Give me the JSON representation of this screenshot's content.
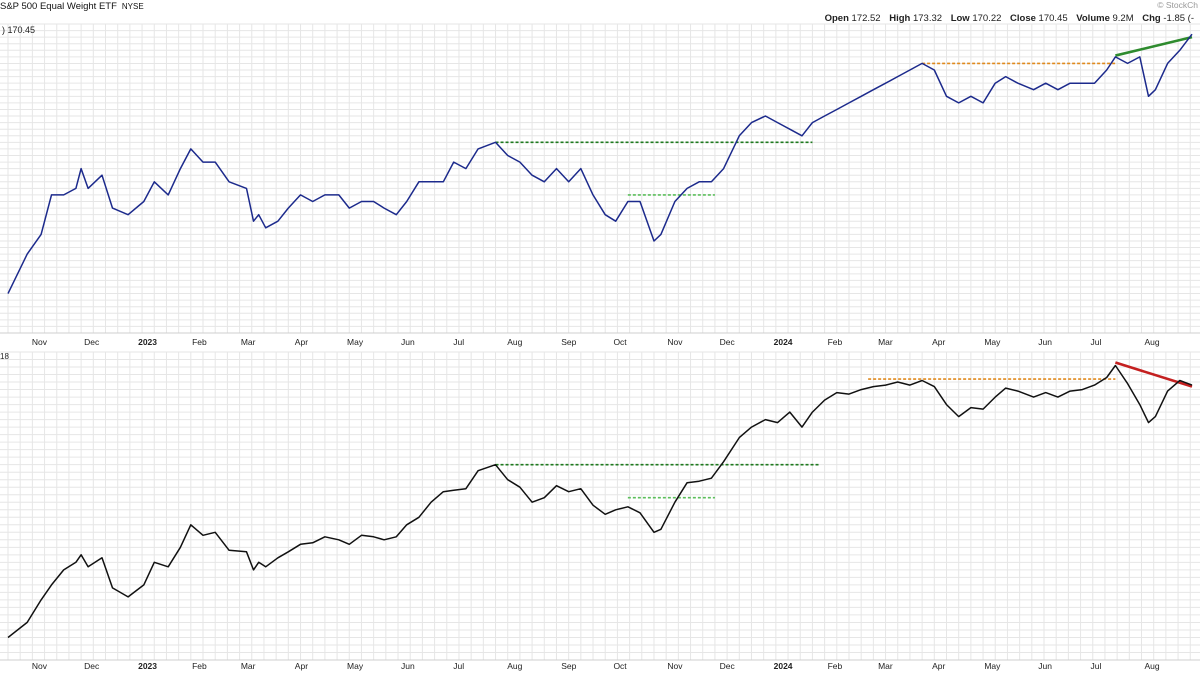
{
  "header": {
    "title": "S&P 500 Equal Weight ETF",
    "exchange": "NYSE",
    "brand": "© StockCh",
    "ohlc": [
      {
        "label": "Open",
        "value": "172.52"
      },
      {
        "label": "High",
        "value": "173.32"
      },
      {
        "label": "Low",
        "value": "170.22"
      },
      {
        "label": "Close",
        "value": "170.45"
      },
      {
        "label": "Volume",
        "value": "9.2M"
      },
      {
        "label": "Chg",
        "value": "-1.85 (-"
      }
    ],
    "current_label": ") 170.45",
    "lower_label": "18"
  },
  "chart_data": [
    {
      "type": "line",
      "title": "S&P 500 Equal Weight ETF",
      "x_tick_labels": [
        "Nov",
        "Dec",
        "2023",
        "Feb",
        "Mar",
        "Apr",
        "May",
        "Jun",
        "Jul",
        "Aug",
        "Sep",
        "Oct",
        "Nov",
        "Dec",
        "2024",
        "Feb",
        "Mar",
        "Apr",
        "May",
        "Jun",
        "Jul",
        "Aug"
      ],
      "x_range": [
        "2022-10-20",
        "2024-08-30"
      ],
      "series": [
        {
          "color": "#1c2a8c",
          "points": [
            [
              "2022-10-20",
              131
            ],
            [
              "2022-10-31",
              137
            ],
            [
              "2022-11-08",
              140
            ],
            [
              "2022-11-14",
              146
            ],
            [
              "2022-11-21",
              146
            ],
            [
              "2022-11-28",
              147
            ],
            [
              "2022-12-01",
              150
            ],
            [
              "2022-12-05",
              147
            ],
            [
              "2022-12-13",
              149
            ],
            [
              "2022-12-19",
              144
            ],
            [
              "2022-12-28",
              143
            ],
            [
              "2023-01-06",
              145
            ],
            [
              "2023-01-12",
              148
            ],
            [
              "2023-01-20",
              146
            ],
            [
              "2023-01-27",
              150
            ],
            [
              "2023-02-02",
              153
            ],
            [
              "2023-02-09",
              151
            ],
            [
              "2023-02-16",
              151
            ],
            [
              "2023-02-24",
              148
            ],
            [
              "2023-03-06",
              147
            ],
            [
              "2023-03-10",
              142
            ],
            [
              "2023-03-13",
              143
            ],
            [
              "2023-03-17",
              141
            ],
            [
              "2023-03-24",
              142
            ],
            [
              "2023-03-30",
              144
            ],
            [
              "2023-04-06",
              146
            ],
            [
              "2023-04-13",
              145
            ],
            [
              "2023-04-20",
              146
            ],
            [
              "2023-04-28",
              146
            ],
            [
              "2023-05-04",
              144
            ],
            [
              "2023-05-11",
              145
            ],
            [
              "2023-05-18",
              145
            ],
            [
              "2023-05-24",
              144
            ],
            [
              "2023-05-31",
              143
            ],
            [
              "2023-06-06",
              145
            ],
            [
              "2023-06-13",
              148
            ],
            [
              "2023-06-20",
              148
            ],
            [
              "2023-06-27",
              148
            ],
            [
              "2023-07-03",
              151
            ],
            [
              "2023-07-10",
              150
            ],
            [
              "2023-07-17",
              153
            ],
            [
              "2023-07-27",
              154
            ],
            [
              "2023-08-03",
              152
            ],
            [
              "2023-08-10",
              151
            ],
            [
              "2023-08-17",
              149
            ],
            [
              "2023-08-24",
              148
            ],
            [
              "2023-08-31",
              150
            ],
            [
              "2023-09-07",
              148
            ],
            [
              "2023-09-14",
              150
            ],
            [
              "2023-09-21",
              146
            ],
            [
              "2023-09-28",
              143
            ],
            [
              "2023-10-04",
              142
            ],
            [
              "2023-10-11",
              145
            ],
            [
              "2023-10-18",
              145
            ],
            [
              "2023-10-26",
              139
            ],
            [
              "2023-10-30",
              140
            ],
            [
              "2023-11-07",
              145
            ],
            [
              "2023-11-14",
              147
            ],
            [
              "2023-11-21",
              148
            ],
            [
              "2023-11-28",
              148
            ],
            [
              "2023-12-05",
              150
            ],
            [
              "2023-12-14",
              155
            ],
            [
              "2023-12-21",
              157
            ],
            [
              "2023-12-29",
              158
            ],
            [
              "2024-01-05",
              157
            ],
            [
              "2024-01-12",
              156
            ],
            [
              "2024-01-19",
              155
            ],
            [
              "2024-01-25",
              157
            ],
            [
              "2024-02-01",
              158
            ],
            [
              "2024-02-08",
              159
            ],
            [
              "2024-02-15",
              160
            ],
            [
              "2024-02-22",
              161
            ],
            [
              "2024-02-29",
              162
            ],
            [
              "2024-03-07",
              163
            ],
            [
              "2024-03-14",
              164
            ],
            [
              "2024-03-21",
              165
            ],
            [
              "2024-03-28",
              166
            ],
            [
              "2024-04-04",
              165
            ],
            [
              "2024-04-11",
              161
            ],
            [
              "2024-04-18",
              160
            ],
            [
              "2024-04-25",
              161
            ],
            [
              "2024-05-02",
              160
            ],
            [
              "2024-05-09",
              163
            ],
            [
              "2024-05-15",
              164
            ],
            [
              "2024-05-22",
              163
            ],
            [
              "2024-05-31",
              162
            ],
            [
              "2024-06-07",
              163
            ],
            [
              "2024-06-14",
              162
            ],
            [
              "2024-06-21",
              163
            ],
            [
              "2024-06-28",
              163
            ],
            [
              "2024-07-05",
              163
            ],
            [
              "2024-07-12",
              165
            ],
            [
              "2024-07-17",
              167
            ],
            [
              "2024-07-24",
              166
            ],
            [
              "2024-07-31",
              167
            ],
            [
              "2024-08-05",
              161
            ],
            [
              "2024-08-09",
              162
            ],
            [
              "2024-08-16",
              166
            ],
            [
              "2024-08-23",
              168
            ],
            [
              "2024-08-30",
              170.45
            ]
          ]
        }
      ]
    },
    {
      "type": "line",
      "x_tick_labels": [
        "Nov",
        "Dec",
        "2023",
        "Feb",
        "Mar",
        "Apr",
        "May",
        "Jun",
        "Jul",
        "Aug",
        "Sep",
        "Oct",
        "Nov",
        "Dec",
        "2024",
        "Feb",
        "Mar",
        "Apr",
        "May",
        "Jun",
        "Jul",
        "Aug"
      ],
      "x_range": [
        "2022-10-20",
        "2024-08-30"
      ],
      "series": [
        {
          "color": "#111111",
          "points": [
            [
              "2022-10-20",
              3.5
            ],
            [
              "2022-10-31",
              4.5
            ],
            [
              "2022-11-08",
              6.0
            ],
            [
              "2022-11-14",
              7.0
            ],
            [
              "2022-11-21",
              8.0
            ],
            [
              "2022-11-28",
              8.5
            ],
            [
              "2022-12-01",
              9.0
            ],
            [
              "2022-12-05",
              8.2
            ],
            [
              "2022-12-13",
              8.8
            ],
            [
              "2022-12-19",
              6.8
            ],
            [
              "2022-12-28",
              6.2
            ],
            [
              "2023-01-06",
              7.0
            ],
            [
              "2023-01-12",
              8.5
            ],
            [
              "2023-01-20",
              8.2
            ],
            [
              "2023-01-27",
              9.5
            ],
            [
              "2023-02-02",
              11.0
            ],
            [
              "2023-02-09",
              10.3
            ],
            [
              "2023-02-16",
              10.5
            ],
            [
              "2023-02-24",
              9.3
            ],
            [
              "2023-03-06",
              9.2
            ],
            [
              "2023-03-10",
              8.0
            ],
            [
              "2023-03-13",
              8.5
            ],
            [
              "2023-03-17",
              8.2
            ],
            [
              "2023-03-24",
              8.8
            ],
            [
              "2023-03-30",
              9.2
            ],
            [
              "2023-04-06",
              9.7
            ],
            [
              "2023-04-13",
              9.8
            ],
            [
              "2023-04-20",
              10.2
            ],
            [
              "2023-04-28",
              10.0
            ],
            [
              "2023-05-04",
              9.7
            ],
            [
              "2023-05-11",
              10.3
            ],
            [
              "2023-05-18",
              10.2
            ],
            [
              "2023-05-24",
              10.0
            ],
            [
              "2023-05-31",
              10.2
            ],
            [
              "2023-06-06",
              11.0
            ],
            [
              "2023-06-13",
              11.5
            ],
            [
              "2023-06-20",
              12.5
            ],
            [
              "2023-06-27",
              13.2
            ],
            [
              "2023-07-03",
              13.3
            ],
            [
              "2023-07-10",
              13.4
            ],
            [
              "2023-07-17",
              14.6
            ],
            [
              "2023-07-27",
              15.0
            ],
            [
              "2023-08-03",
              14.0
            ],
            [
              "2023-08-10",
              13.5
            ],
            [
              "2023-08-17",
              12.5
            ],
            [
              "2023-08-24",
              12.8
            ],
            [
              "2023-08-31",
              13.6
            ],
            [
              "2023-09-07",
              13.2
            ],
            [
              "2023-09-14",
              13.4
            ],
            [
              "2023-09-21",
              12.3
            ],
            [
              "2023-09-28",
              11.7
            ],
            [
              "2023-10-04",
              12.0
            ],
            [
              "2023-10-11",
              12.2
            ],
            [
              "2023-10-18",
              11.8
            ],
            [
              "2023-10-26",
              10.5
            ],
            [
              "2023-10-30",
              10.7
            ],
            [
              "2023-11-07",
              12.5
            ],
            [
              "2023-11-14",
              13.8
            ],
            [
              "2023-11-21",
              13.9
            ],
            [
              "2023-11-28",
              14.1
            ],
            [
              "2023-12-05",
              15.2
            ],
            [
              "2023-12-14",
              16.8
            ],
            [
              "2023-12-21",
              17.5
            ],
            [
              "2023-12-29",
              18.0
            ],
            [
              "2024-01-05",
              17.8
            ],
            [
              "2024-01-12",
              18.5
            ],
            [
              "2024-01-19",
              17.5
            ],
            [
              "2024-01-25",
              18.5
            ],
            [
              "2024-02-01",
              19.3
            ],
            [
              "2024-02-08",
              19.8
            ],
            [
              "2024-02-15",
              19.7
            ],
            [
              "2024-02-22",
              20.0
            ],
            [
              "2024-02-29",
              20.2
            ],
            [
              "2024-03-07",
              20.3
            ],
            [
              "2024-03-14",
              20.5
            ],
            [
              "2024-03-21",
              20.3
            ],
            [
              "2024-03-28",
              20.6
            ],
            [
              "2024-04-04",
              20.2
            ],
            [
              "2024-04-11",
              19.0
            ],
            [
              "2024-04-18",
              18.2
            ],
            [
              "2024-04-25",
              18.8
            ],
            [
              "2024-05-02",
              18.7
            ],
            [
              "2024-05-09",
              19.5
            ],
            [
              "2024-05-15",
              20.1
            ],
            [
              "2024-05-22",
              19.9
            ],
            [
              "2024-05-31",
              19.5
            ],
            [
              "2024-06-07",
              19.8
            ],
            [
              "2024-06-14",
              19.5
            ],
            [
              "2024-06-21",
              19.9
            ],
            [
              "2024-06-28",
              20.0
            ],
            [
              "2024-07-05",
              20.3
            ],
            [
              "2024-07-12",
              20.8
            ],
            [
              "2024-07-17",
              21.6
            ],
            [
              "2024-07-24",
              20.4
            ],
            [
              "2024-07-31",
              19.0
            ],
            [
              "2024-08-05",
              17.8
            ],
            [
              "2024-08-09",
              18.2
            ],
            [
              "2024-08-16",
              19.9
            ],
            [
              "2024-08-23",
              20.6
            ],
            [
              "2024-08-30",
              20.3
            ]
          ]
        }
      ]
    }
  ],
  "annotations": {
    "upper": [
      {
        "kind": "horizontal",
        "style": "dashed",
        "color": "#e08a1e",
        "y": 166,
        "from": "2024-03-28",
        "to": "2024-07-17"
      },
      {
        "kind": "horizontal",
        "style": "dashed",
        "color": "#1f7a1f",
        "y": 154,
        "from": "2023-07-27",
        "to": "2024-01-25"
      },
      {
        "kind": "horizontal",
        "style": "dashed",
        "color": "#5cbf5c",
        "y": 146,
        "from": "2023-10-11",
        "to": "2023-11-30"
      },
      {
        "kind": "trend",
        "style": "solid",
        "color": "#2e8b2e",
        "from": [
          "2024-07-17",
          167.2
        ],
        "to": [
          "2024-08-30",
          170.0
        ]
      }
    ],
    "lower": [
      {
        "kind": "horizontal",
        "style": "dashed",
        "color": "#e08a1e",
        "y": 20.7,
        "from": "2024-02-26",
        "to": "2024-07-17"
      },
      {
        "kind": "horizontal",
        "style": "dashed",
        "color": "#1f7a1f",
        "y": 15.0,
        "from": "2023-07-27",
        "to": "2024-01-29"
      },
      {
        "kind": "horizontal",
        "style": "dashed",
        "color": "#5cbf5c",
        "y": 12.8,
        "from": "2023-10-11",
        "to": "2023-11-30"
      },
      {
        "kind": "trend",
        "style": "solid",
        "color": "#c42020",
        "from": [
          "2024-07-17",
          21.8
        ],
        "to": [
          "2024-08-30",
          20.2
        ]
      }
    ]
  },
  "colors": {
    "grid": "#e6e6e6",
    "axis_text": "#222222",
    "separator": "#cfcfcf"
  }
}
